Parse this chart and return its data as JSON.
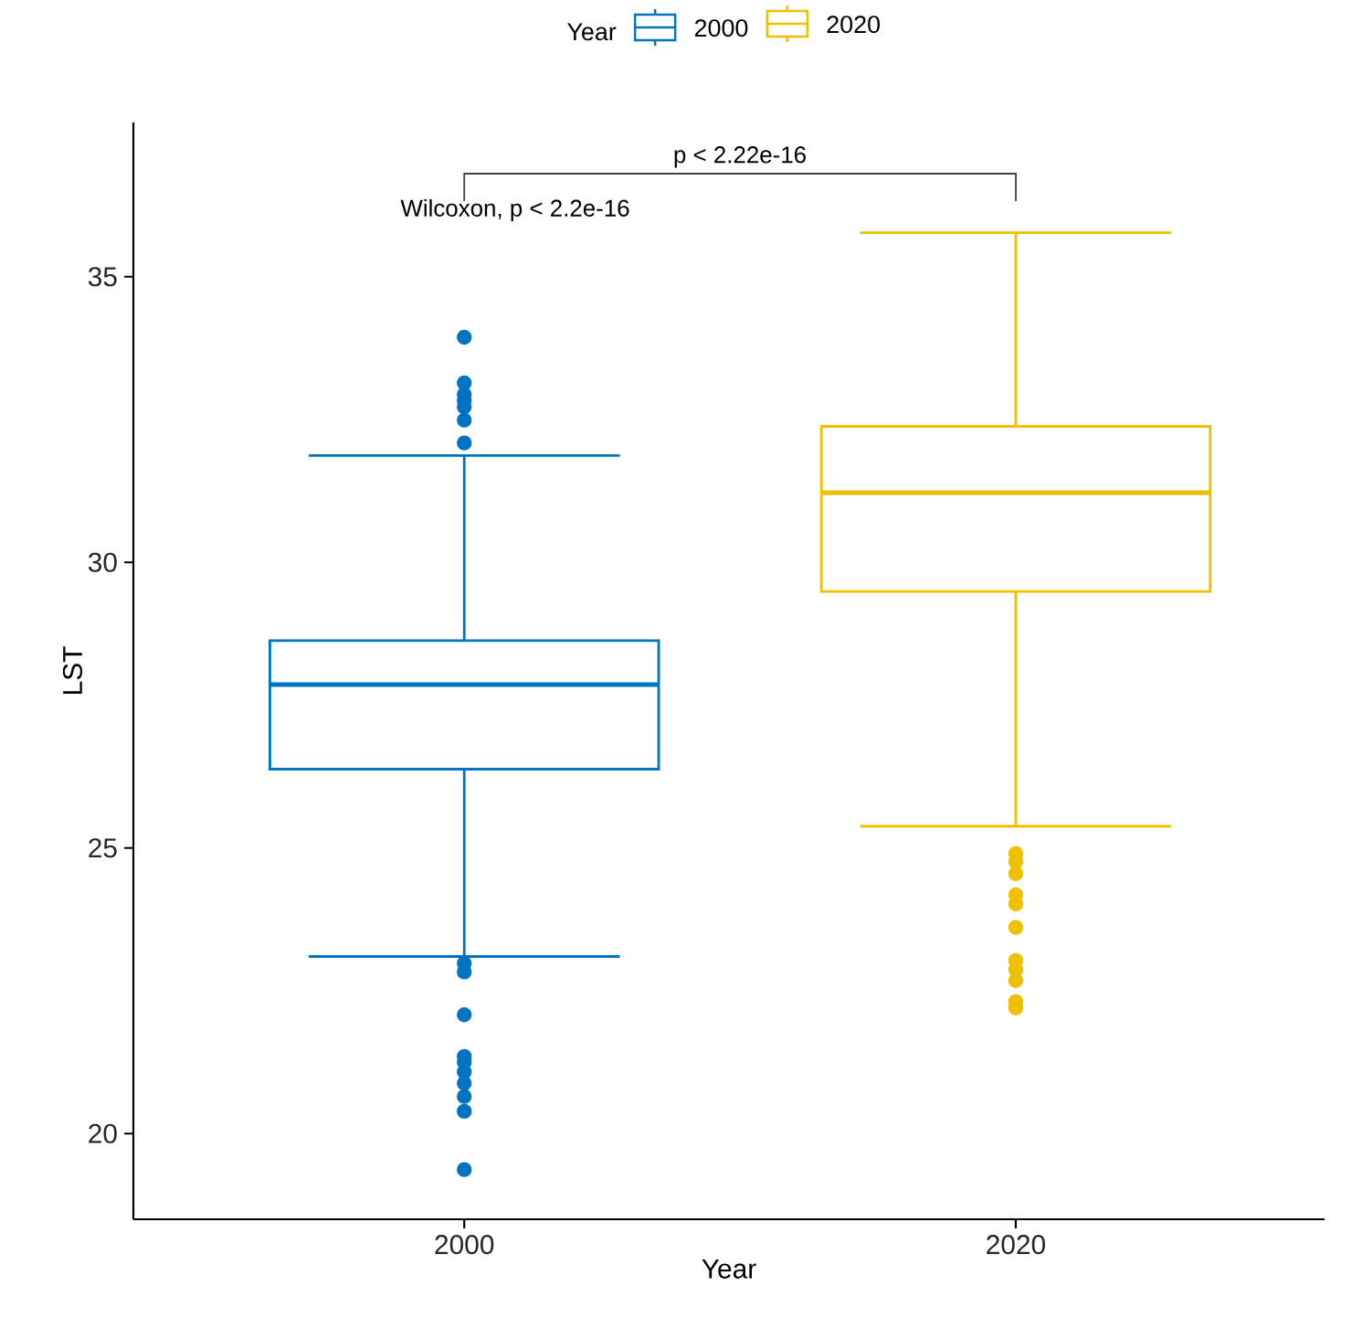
{
  "chart_data": {
    "type": "box",
    "xlabel": "Year",
    "ylabel": "LST",
    "legend_title": "Year",
    "legend": "top",
    "categories": [
      "2000",
      "2020"
    ],
    "series": [
      {
        "name": "2000",
        "color": "#0073c2",
        "boxes": [
          {
            "low": 23.1,
            "q1": 26.38,
            "median": 27.86,
            "q3": 28.63,
            "high": 31.87,
            "outliers": [
              33.94,
              33.14,
              32.94,
              32.83,
              32.72,
              32.49,
              32.09,
              22.98,
              22.83,
              22.08,
              21.35,
              21.25,
              21.08,
              20.88,
              20.65,
              20.39,
              19.37
            ]
          },
          null
        ]
      },
      {
        "name": "2020",
        "color": "#efc000",
        "boxes": [
          null,
          {
            "low": 25.38,
            "q1": 29.49,
            "median": 31.22,
            "q3": 32.38,
            "high": 35.77,
            "outliers": [
              24.9,
              24.76,
              24.55,
              24.18,
              24.02,
              23.61,
              23.03,
              22.87,
              22.68,
              22.31,
              22.2
            ]
          }
        ]
      }
    ],
    "ylim": [
      18.5,
      37.7
    ],
    "yticks": [
      20,
      25,
      30,
      35
    ],
    "annotations": [
      "p < 2.22e-16",
      "Wilcoxon, p < 2.2e-16"
    ]
  }
}
